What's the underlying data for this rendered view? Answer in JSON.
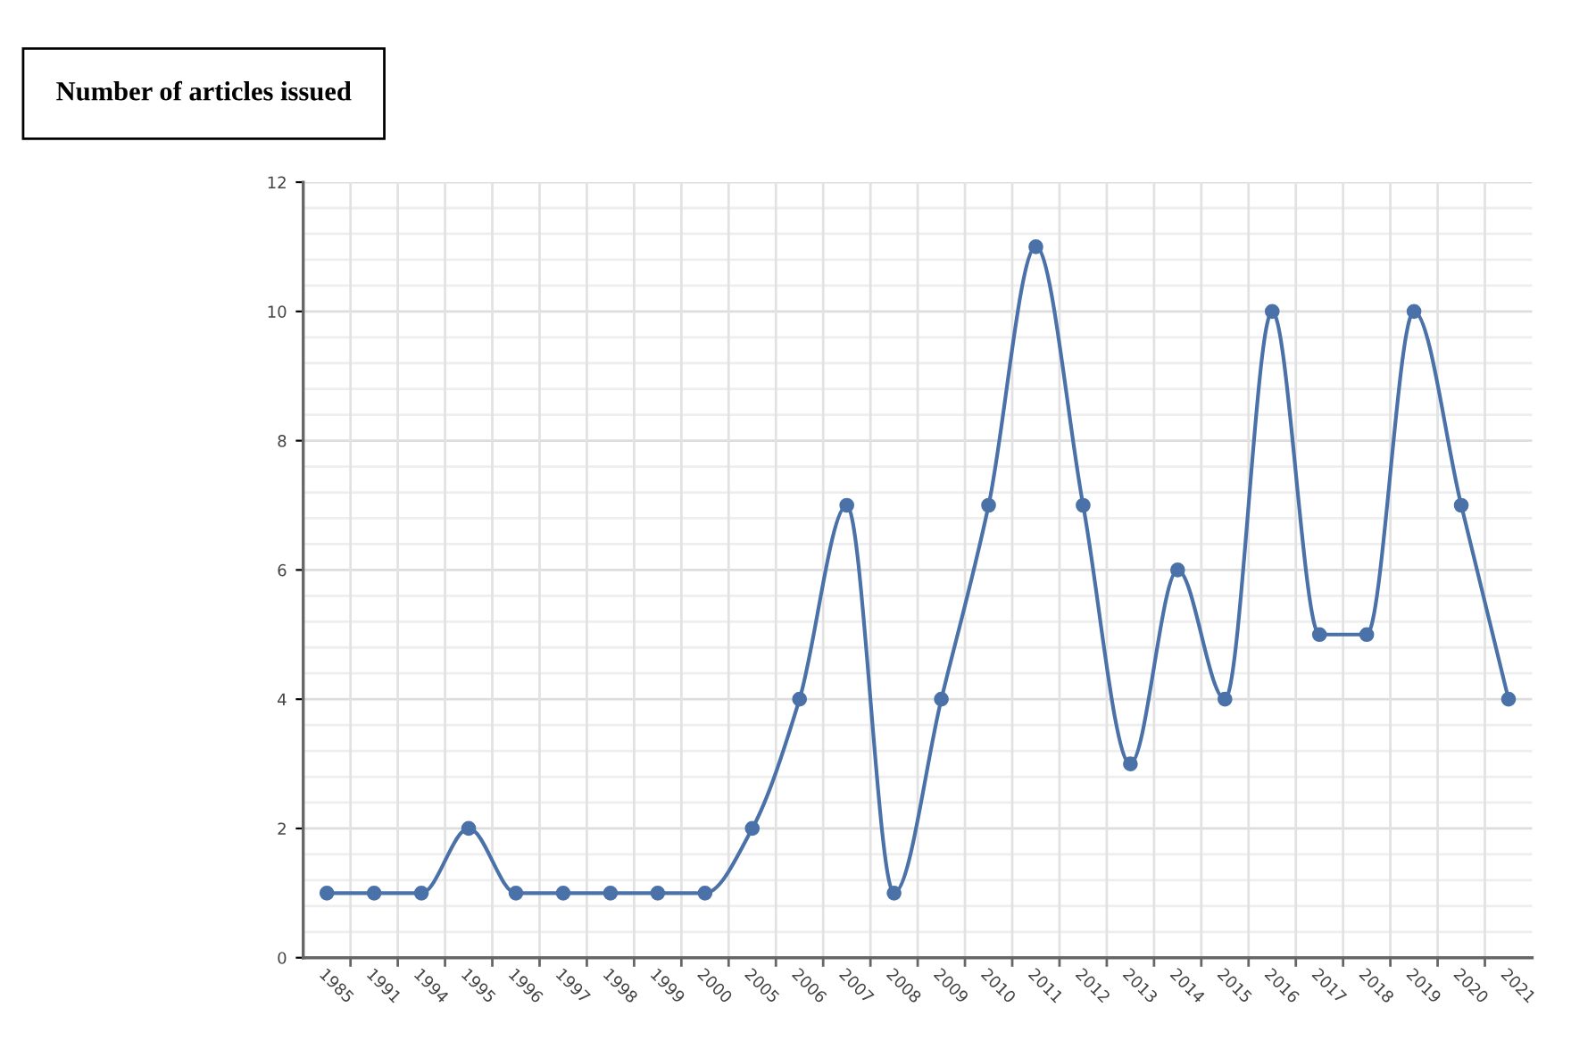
{
  "chart_data": {
    "type": "line",
    "title": "Number of articles issued",
    "categories": [
      "1985",
      "1991",
      "1994",
      "1995",
      "1996",
      "1997",
      "1998",
      "1999",
      "2000",
      "2005",
      "2006",
      "2007",
      "2008",
      "2009",
      "2010",
      "2011",
      "2012",
      "2013",
      "2014",
      "2015",
      "2016",
      "2017",
      "2018",
      "2019",
      "2020",
      "2021"
    ],
    "series": [
      {
        "color": "#4a72a8",
        "values": [
          1,
          1,
          1,
          2,
          1,
          1,
          1,
          1,
          1,
          2,
          4,
          7,
          1,
          4,
          7,
          11,
          7,
          3,
          6,
          4,
          10,
          5,
          5,
          10,
          7,
          4
        ]
      }
    ],
    "ylim": [
      0,
      12
    ],
    "yticks": [
      0,
      2,
      4,
      6,
      8,
      10,
      12
    ],
    "grid": true,
    "marker": "circle",
    "line_style": "solid"
  }
}
